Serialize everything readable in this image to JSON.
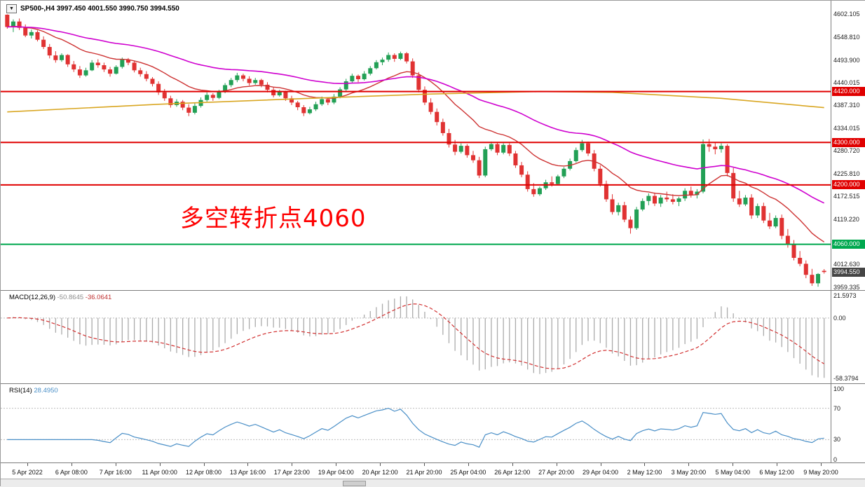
{
  "window": {
    "background": "#ffffff"
  },
  "main": {
    "title": "SP500-,H4 3997.450 4001.550 3990.750 3994.550",
    "menu_icon": "▼",
    "annotation": {
      "text": "多空转折点4060",
      "color": "#fe0000"
    },
    "price_ticks": [
      "4602.105",
      "4548.810",
      "4493.900",
      "4440.015",
      "4387.310",
      "4334.015",
      "4280.720",
      "4225.810",
      "4172.515",
      "4119.220",
      "4012.630",
      "3959.335"
    ],
    "levels": [
      {
        "price": 4420.0,
        "label": "4420.000",
        "color": "#e00000"
      },
      {
        "price": 4300.0,
        "label": "4300.000",
        "color": "#e00000"
      },
      {
        "price": 4200.0,
        "label": "4200.000",
        "color": "#e00000"
      },
      {
        "price": 4060.0,
        "label": "4060.000",
        "color": "#00a84f"
      }
    ],
    "current_price": {
      "value": 3994.55,
      "label": "3994.550",
      "badge_color": "#444444"
    }
  },
  "macd_panel": {
    "label": "MACD(12,26,9)",
    "value": "-50.8645",
    "signal_value": "-36.0641",
    "ticks": [
      {
        "text": "21.5973",
        "value": 21.5973
      },
      {
        "text": "0.00",
        "value": 0
      },
      {
        "text": "-58.3794",
        "value": -58.3794
      }
    ]
  },
  "rsi_panel": {
    "label": "RSI(14)",
    "value": "28.4950",
    "ticks": [
      {
        "text": "100",
        "value": 100
      },
      {
        "text": "70",
        "value": 70
      },
      {
        "text": "30",
        "value": 30
      },
      {
        "text": "0",
        "value": 0
      }
    ]
  },
  "time_axis": {
    "labels": [
      "5 Apr 2022",
      "6 Apr 08:00",
      "7 Apr 16:00",
      "11 Apr 00:00",
      "12 Apr 08:00",
      "13 Apr 16:00",
      "17 Apr 23:00",
      "19 Apr 04:00",
      "20 Apr 12:00",
      "21 Apr 20:00",
      "25 Apr 04:00",
      "26 Apr 12:00",
      "27 Apr 20:00",
      "29 Apr 04:00",
      "2 May 12:00",
      "3 May 20:00",
      "5 May 04:00",
      "6 May 12:00",
      "9 May 20:00"
    ]
  },
  "colors": {
    "candle_up": "#22a055",
    "candle_down": "#e03232",
    "ma_fast_red": "#cd3232",
    "ma_slow_magenta": "#cf00cf",
    "ma_long_orange": "#d9a621",
    "level_red": "#e00000",
    "level_green": "#00a84f",
    "current_badge": "#444444",
    "macd_histogram": "#ababab",
    "macd_signal": "#d23232",
    "rsi_line": "#4a8fc7",
    "guide_silver": "#bdbdbd"
  },
  "chart_data": [
    {
      "type": "candlestick",
      "symbol": "SP500-",
      "timeframe": "H4",
      "title": "SP500-,H4",
      "ylim": [
        3952,
        4634
      ],
      "x_time_labels": [
        "5 Apr 2022",
        "6 Apr 08:00",
        "7 Apr 16:00",
        "11 Apr 00:00",
        "12 Apr 08:00",
        "13 Apr 16:00",
        "17 Apr 23:00",
        "19 Apr 04:00",
        "20 Apr 12:00",
        "21 Apr 20:00",
        "25 Apr 04:00",
        "26 Apr 12:00",
        "27 Apr 20:00",
        "29 Apr 04:00",
        "2 May 12:00",
        "3 May 20:00",
        "5 May 04:00",
        "6 May 12:00",
        "9 May 20:00"
      ],
      "current_bar": {
        "open": 3997.45,
        "high": 4001.55,
        "low": 3990.75,
        "close": 3994.55
      },
      "horizontal_lines": [
        {
          "price": 4420,
          "color": "#e00000"
        },
        {
          "price": 4300,
          "color": "#e00000"
        },
        {
          "price": 4200,
          "color": "#e00000"
        },
        {
          "price": 4060,
          "color": "#00a84f"
        }
      ],
      "moving_averages": [
        {
          "name": "fast",
          "method": "ema",
          "period": 16,
          "color": "#cd3232",
          "source": "close"
        },
        {
          "name": "slow",
          "method": "ema",
          "period": 48,
          "color": "#cf00cf",
          "source": "close"
        },
        {
          "name": "long",
          "method": "anchor-points",
          "color": "#d9a621",
          "points": [
            [
              0,
              4372
            ],
            [
              25,
              4390
            ],
            [
              50,
              4404
            ],
            [
              70,
              4414
            ],
            [
              88,
              4420
            ],
            [
              100,
              4418
            ],
            [
              118,
              4404
            ],
            [
              135,
              4382
            ]
          ]
        }
      ],
      "ohlc": [
        [
          4601,
          4602,
          4568,
          4572
        ],
        [
          4572,
          4590,
          4560,
          4585
        ],
        [
          4585,
          4592,
          4565,
          4570
        ],
        [
          4570,
          4578,
          4548,
          4552
        ],
        [
          4552,
          4566,
          4545,
          4560
        ],
        [
          4560,
          4564,
          4538,
          4542
        ],
        [
          4542,
          4550,
          4520,
          4525
        ],
        [
          4525,
          4532,
          4498,
          4505
        ],
        [
          4505,
          4515,
          4488,
          4494
        ],
        [
          4494,
          4510,
          4490,
          4506
        ],
        [
          4506,
          4508,
          4478,
          4484
        ],
        [
          4484,
          4492,
          4466,
          4472
        ],
        [
          4472,
          4480,
          4452,
          4458
        ],
        [
          4458,
          4476,
          4455,
          4470
        ],
        [
          4470,
          4494,
          4468,
          4488
        ],
        [
          4488,
          4496,
          4476,
          4482
        ],
        [
          4482,
          4488,
          4466,
          4472
        ],
        [
          4472,
          4478,
          4455,
          4462
        ],
        [
          4462,
          4482,
          4460,
          4478
        ],
        [
          4478,
          4500,
          4474,
          4495
        ],
        [
          4495,
          4499,
          4482,
          4488
        ],
        [
          4488,
          4492,
          4465,
          4470
        ],
        [
          4470,
          4476,
          4455,
          4461
        ],
        [
          4461,
          4468,
          4444,
          4450
        ],
        [
          4450,
          4454,
          4432,
          4438
        ],
        [
          4438,
          4444,
          4412,
          4418
        ],
        [
          4418,
          4426,
          4398,
          4404
        ],
        [
          4404,
          4410,
          4382,
          4388
        ],
        [
          4388,
          4402,
          4384,
          4396
        ],
        [
          4396,
          4400,
          4376,
          4382
        ],
        [
          4382,
          4390,
          4362,
          4370
        ],
        [
          4370,
          4392,
          4366,
          4386
        ],
        [
          4386,
          4406,
          4382,
          4400
        ],
        [
          4400,
          4418,
          4396,
          4412
        ],
        [
          4412,
          4416,
          4398,
          4405
        ],
        [
          4405,
          4424,
          4402,
          4420
        ],
        [
          4420,
          4440,
          4416,
          4435
        ],
        [
          4435,
          4452,
          4430,
          4447
        ],
        [
          4447,
          4464,
          4442,
          4458
        ],
        [
          4458,
          4462,
          4444,
          4450
        ],
        [
          4450,
          4456,
          4434,
          4440
        ],
        [
          4440,
          4452,
          4436,
          4447
        ],
        [
          4447,
          4450,
          4430,
          4436
        ],
        [
          4436,
          4442,
          4418,
          4424
        ],
        [
          4424,
          4430,
          4406,
          4411
        ],
        [
          4411,
          4424,
          4408,
          4419
        ],
        [
          4419,
          4422,
          4398,
          4404
        ],
        [
          4404,
          4410,
          4388,
          4394
        ],
        [
          4394,
          4398,
          4376,
          4383
        ],
        [
          4383,
          4388,
          4362,
          4369
        ],
        [
          4369,
          4384,
          4366,
          4378
        ],
        [
          4378,
          4396,
          4374,
          4390
        ],
        [
          4390,
          4408,
          4386,
          4402
        ],
        [
          4402,
          4406,
          4388,
          4394
        ],
        [
          4394,
          4414,
          4390,
          4408
        ],
        [
          4408,
          4430,
          4404,
          4425
        ],
        [
          4425,
          4450,
          4420,
          4444
        ],
        [
          4444,
          4462,
          4440,
          4457
        ],
        [
          4457,
          4460,
          4442,
          4449
        ],
        [
          4449,
          4468,
          4446,
          4462
        ],
        [
          4462,
          4480,
          4458,
          4475
        ],
        [
          4475,
          4494,
          4472,
          4489
        ],
        [
          4489,
          4500,
          4482,
          4495
        ],
        [
          4495,
          4512,
          4490,
          4506
        ],
        [
          4506,
          4510,
          4490,
          4497
        ],
        [
          4497,
          4514,
          4494,
          4510
        ],
        [
          4510,
          4513,
          4486,
          4491
        ],
        [
          4491,
          4498,
          4452,
          4458
        ],
        [
          4458,
          4466,
          4418,
          4424
        ],
        [
          4424,
          4432,
          4388,
          4394
        ],
        [
          4394,
          4404,
          4366,
          4372
        ],
        [
          4372,
          4380,
          4340,
          4348
        ],
        [
          4348,
          4356,
          4316,
          4322
        ],
        [
          4322,
          4332,
          4288,
          4295
        ],
        [
          4295,
          4306,
          4270,
          4278
        ],
        [
          4278,
          4298,
          4274,
          4292
        ],
        [
          4292,
          4296,
          4264,
          4270
        ],
        [
          4270,
          4280,
          4252,
          4258
        ],
        [
          4258,
          4266,
          4216,
          4222
        ],
        [
          4222,
          4290,
          4218,
          4284
        ],
        [
          4284,
          4302,
          4280,
          4296
        ],
        [
          4296,
          4300,
          4270,
          4276
        ],
        [
          4276,
          4298,
          4272,
          4294
        ],
        [
          4294,
          4298,
          4268,
          4274
        ],
        [
          4274,
          4280,
          4240,
          4246
        ],
        [
          4246,
          4254,
          4218,
          4224
        ],
        [
          4224,
          4232,
          4184,
          4190
        ],
        [
          4190,
          4204,
          4172,
          4178
        ],
        [
          4178,
          4196,
          4174,
          4192
        ],
        [
          4192,
          4212,
          4188,
          4206
        ],
        [
          4206,
          4220,
          4196,
          4202
        ],
        [
          4202,
          4224,
          4200,
          4220
        ],
        [
          4220,
          4242,
          4216,
          4238
        ],
        [
          4238,
          4262,
          4234,
          4256
        ],
        [
          4256,
          4288,
          4252,
          4282
        ],
        [
          4282,
          4306,
          4278,
          4298
        ],
        [
          4298,
          4302,
          4268,
          4274
        ],
        [
          4274,
          4282,
          4232,
          4238
        ],
        [
          4238,
          4246,
          4196,
          4202
        ],
        [
          4202,
          4210,
          4160,
          4166
        ],
        [
          4166,
          4178,
          4130,
          4136
        ],
        [
          4136,
          4158,
          4128,
          4152
        ],
        [
          4152,
          4160,
          4112,
          4118
        ],
        [
          4118,
          4126,
          4085,
          4098
        ],
        [
          4098,
          4148,
          4094,
          4142
        ],
        [
          4142,
          4168,
          4138,
          4162
        ],
        [
          4162,
          4180,
          4152,
          4174
        ],
        [
          4174,
          4182,
          4150,
          4156
        ],
        [
          4156,
          4176,
          4148,
          4170
        ],
        [
          4170,
          4184,
          4160,
          4166
        ],
        [
          4166,
          4178,
          4154,
          4160
        ],
        [
          4160,
          4172,
          4150,
          4168
        ],
        [
          4168,
          4192,
          4162,
          4186
        ],
        [
          4186,
          4196,
          4170,
          4176
        ],
        [
          4176,
          4190,
          4168,
          4184
        ],
        [
          4184,
          4307,
          4180,
          4296
        ],
        [
          4296,
          4308,
          4278,
          4290
        ],
        [
          4290,
          4300,
          4272,
          4284
        ],
        [
          4284,
          4298,
          4276,
          4292
        ],
        [
          4292,
          4296,
          4220,
          4228
        ],
        [
          4228,
          4240,
          4160,
          4168
        ],
        [
          4168,
          4186,
          4148,
          4154
        ],
        [
          4154,
          4176,
          4150,
          4170
        ],
        [
          4170,
          4178,
          4120,
          4128
        ],
        [
          4128,
          4156,
          4122,
          4150
        ],
        [
          4150,
          4158,
          4110,
          4116
        ],
        [
          4116,
          4134,
          4096,
          4102
        ],
        [
          4102,
          4128,
          4098,
          4122
        ],
        [
          4122,
          4130,
          4072,
          4080
        ],
        [
          4080,
          4096,
          4052,
          4060
        ],
        [
          4060,
          4070,
          4022,
          4028
        ],
        [
          4028,
          4044,
          4008,
          4014
        ],
        [
          4014,
          4022,
          3980,
          3988
        ],
        [
          3988,
          4002,
          3962,
          3968
        ],
        [
          3968,
          3992,
          3960,
          3990
        ],
        [
          3997.45,
          4001.55,
          3990.75,
          3994.55
        ]
      ]
    },
    {
      "type": "bar",
      "name": "MACD",
      "params": [
        12,
        26,
        9
      ],
      "derived_from": "ohlc closes",
      "current_macd": -50.8645,
      "current_signal": -36.0641,
      "ylim": [
        -63.5,
        25.5
      ],
      "axis_ticks": [
        21.5973,
        0,
        -58.3794
      ]
    },
    {
      "type": "line",
      "name": "RSI",
      "period": 14,
      "derived_from": "ohlc closes",
      "current": 28.495,
      "ylim": [
        0,
        100
      ],
      "levels": [
        70,
        30
      ],
      "axis_ticks": [
        100,
        70,
        30,
        0
      ]
    }
  ]
}
